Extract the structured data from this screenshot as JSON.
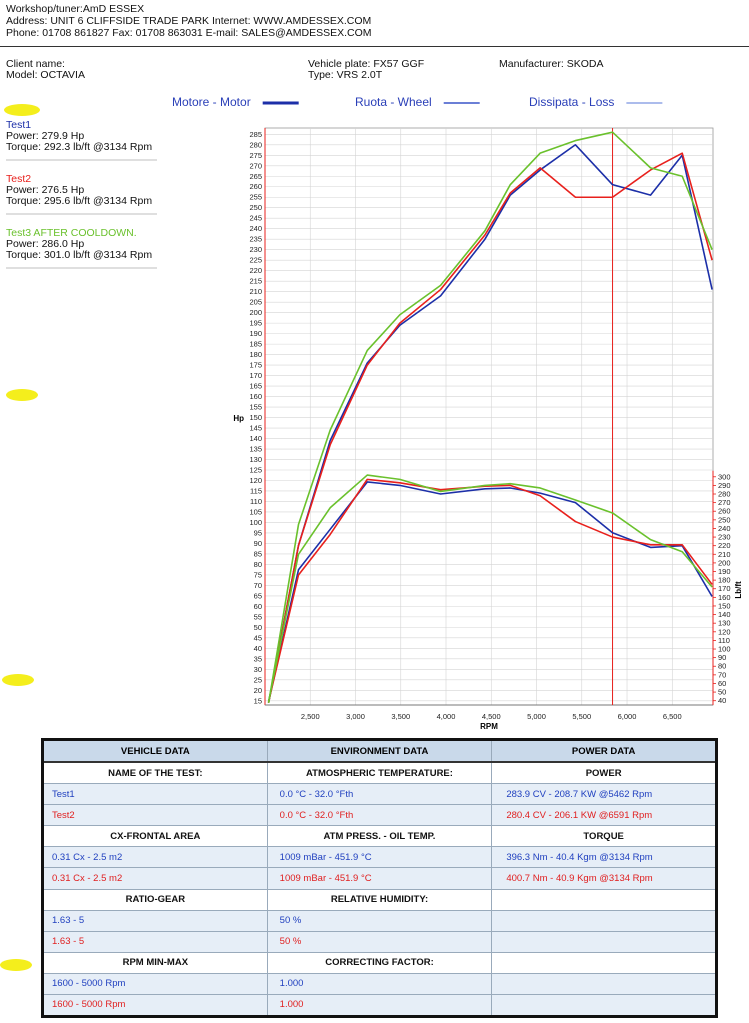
{
  "header": {
    "workshop": "Workshop/tuner:AmD ESSEX",
    "address": "Address: UNIT 6 CLIFFSIDE TRADE PARK Internet: WWW.AMDESSEX.COM",
    "phone": "Phone: 01708 861827 Fax: 01708 863031 E-mail: SALES@AMDESSEX.COM",
    "client": "Client name:",
    "model": "Model: OCTAVIA",
    "plate": "Vehicle plate: FX57 GGF",
    "type": "Type: VRS 2.0T",
    "manufacturer": "Manufacturer: SKODA"
  },
  "chart_data": {
    "type": "line",
    "xlabel": "RPM",
    "ylabel": "Hp",
    "y2label": "Lb/ft",
    "line_legend": [
      {
        "label": "Motore - Motor",
        "color": "#1c2fa8",
        "width": 3
      },
      {
        "label": "Ruota - Wheel",
        "color": "#3a55c8",
        "width": 1.5
      },
      {
        "label": "Dissipata - Loss",
        "color": "#5a78d8",
        "width": 1
      }
    ],
    "x": [
      2040,
      2370,
      2720,
      3130,
      3490,
      3940,
      4430,
      4710,
      5040,
      5430,
      5840,
      6260,
      6610,
      6940
    ],
    "series": [
      {
        "name": "Test1",
        "color": "#1c2fa8",
        "summary": [
          "Power: 279.9 Hp",
          "Torque: 292.3 lb/ft @3134 Rpm"
        ],
        "hp": [
          14,
          89,
          139,
          176,
          194,
          208,
          235,
          256,
          268,
          280,
          261,
          256,
          275,
          211
        ],
        "torque": [
          39,
          192,
          239,
          294,
          290,
          280,
          286,
          287,
          281,
          270,
          235,
          218,
          220,
          161
        ]
      },
      {
        "name": "Test2",
        "color": "#e8201c",
        "summary": [
          "Power: 276.5 Hp",
          "Torque: 295.6 lb/ft @3134 Rpm"
        ],
        "hp": [
          14,
          89,
          137,
          175,
          195,
          211,
          237,
          257,
          269,
          255,
          255,
          268,
          276,
          225
        ],
        "torque": [
          39,
          186,
          233,
          297,
          293,
          285,
          289,
          290,
          278,
          248,
          230,
          221,
          221,
          175
        ]
      },
      {
        "name": "Test3 AFTER COOLDOWN.",
        "color": "#6ac12c",
        "summary": [
          "Power: 286.0 Hp",
          "Torque: 301.0 lb/ft @3134 Rpm"
        ],
        "hp": [
          14,
          99,
          144,
          182,
          199,
          213,
          239,
          261,
          276,
          282,
          286,
          269,
          265,
          230
        ],
        "torque": [
          39,
          210,
          264,
          302,
          297,
          283,
          290,
          292,
          287,
          273,
          258,
          227,
          213,
          172
        ]
      }
    ],
    "xlim": [
      2000,
      6950
    ],
    "xticks": [
      {
        "value": 2500,
        "label": "2,500"
      },
      {
        "value": 3000,
        "label": "3,000"
      },
      {
        "value": 3500,
        "label": "3,500"
      },
      {
        "value": 4000,
        "label": "4,000"
      },
      {
        "value": 4500,
        "label": "4,500"
      },
      {
        "value": 5000,
        "label": "5,000"
      },
      {
        "value": 5500,
        "label": "5,500"
      },
      {
        "value": 6000,
        "label": "6,000"
      },
      {
        "value": 6500,
        "label": "6,500"
      }
    ],
    "ylim": [
      13,
      288
    ],
    "yticks": [
      15,
      20,
      25,
      30,
      35,
      40,
      45,
      50,
      55,
      60,
      65,
      70,
      75,
      80,
      85,
      90,
      95,
      100,
      105,
      110,
      115,
      120,
      125,
      130,
      135,
      140,
      145,
      150,
      155,
      160,
      165,
      170,
      175,
      180,
      185,
      190,
      195,
      200,
      205,
      210,
      215,
      220,
      225,
      230,
      235,
      240,
      245,
      250,
      255,
      260,
      265,
      270,
      275,
      280,
      285
    ],
    "y2lim": [
      35,
      705
    ],
    "y2ticks": [
      40,
      50,
      60,
      70,
      80,
      90,
      100,
      110,
      120,
      130,
      140,
      150,
      160,
      170,
      180,
      190,
      200,
      210,
      220,
      230,
      240,
      250,
      260,
      270,
      280,
      290,
      300
    ],
    "cursor_x": 5840,
    "cursor_color": "#e8201c",
    "axis_color": "#e8201c",
    "grid": true
  },
  "table": {
    "header": [
      "VEHICLE DATA",
      "ENVIRONMENT DATA",
      "POWER DATA"
    ],
    "rows": [
      {
        "kind": "section",
        "cells": [
          "NAME OF THE TEST:",
          "ATMOSPHERIC TEMPERATURE:",
          "POWER"
        ]
      },
      {
        "color": "#1f3fbf",
        "cells": [
          "Test1",
          "0.0 °C - 32.0 °Fth",
          "283.9 CV - 208.7 KW  @5462 Rpm"
        ]
      },
      {
        "color": "#e02020",
        "cells": [
          "Test2",
          "0.0 °C - 32.0 °Fth",
          "280.4 CV - 206.1 KW  @6591 Rpm"
        ]
      },
      {
        "kind": "section",
        "cells": [
          "CX-FRONTAL AREA",
          "ATM PRESS. - OIL TEMP.",
          "TORQUE"
        ]
      },
      {
        "color": "#1f3fbf",
        "cells": [
          "0.31 Cx - 2.5 m2",
          "1009 mBar - 451.9 °C",
          "396.3 Nm - 40.4 Kgm  @3134 Rpm"
        ]
      },
      {
        "color": "#e02020",
        "cells": [
          "0.31 Cx - 2.5 m2",
          "1009 mBar - 451.9 °C",
          "400.7 Nm - 40.9 Kgm  @3134 Rpm"
        ]
      },
      {
        "kind": "section",
        "cells": [
          "RATIO-GEAR",
          "RELATIVE HUMIDITY:",
          null
        ]
      },
      {
        "color": "#1f3fbf",
        "cells": [
          "1.63 - 5",
          "50 %",
          null
        ]
      },
      {
        "color": "#e02020",
        "cells": [
          "1.63 - 5",
          "50 %",
          null
        ]
      },
      {
        "kind": "section",
        "cells": [
          "RPM MIN-MAX",
          "CORRECTING FACTOR:",
          null
        ]
      },
      {
        "color": "#1f3fbf",
        "cells": [
          "1600 - 5000 Rpm",
          "1.000",
          null
        ]
      },
      {
        "color": "#e02020",
        "cells": [
          "1600 - 5000 Rpm",
          "1.000",
          null
        ]
      }
    ]
  }
}
